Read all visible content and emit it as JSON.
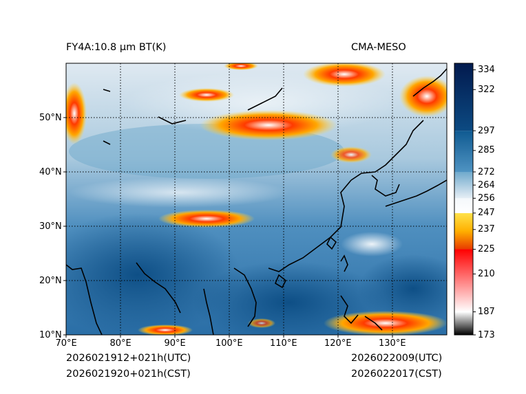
{
  "header": {
    "left_title": "FY4A:10.8 µm BT(K)",
    "right_title": "CMA-MESO"
  },
  "footer": {
    "init_utc": "2026021912+021h(UTC)",
    "init_cst": "2026021920+021h(CST)",
    "valid_utc": "2026022009(UTC)",
    "valid_cst": "2026022017(CST)"
  },
  "map": {
    "lon_range": [
      70,
      140
    ],
    "lat_range": [
      10,
      60
    ],
    "lon_ticks": [
      {
        "value": 70,
        "label": "70°E"
      },
      {
        "value": 80,
        "label": "80°E"
      },
      {
        "value": 90,
        "label": "90°E"
      },
      {
        "value": 100,
        "label": "100°E"
      },
      {
        "value": 110,
        "label": "110°E"
      },
      {
        "value": 120,
        "label": "120°E"
      },
      {
        "value": 130,
        "label": "130°E"
      }
    ],
    "lat_ticks": [
      {
        "value": 10,
        "label": "10°N"
      },
      {
        "value": 20,
        "label": "20°N"
      },
      {
        "value": 30,
        "label": "30°N"
      },
      {
        "value": 40,
        "label": "40°N"
      },
      {
        "value": 50,
        "label": "50°N"
      }
    ],
    "gridline_style": "dotted"
  },
  "colorbar": {
    "unit": "K",
    "range": [
      173,
      338
    ],
    "ticks": [
      {
        "value": 173,
        "label": "173"
      },
      {
        "value": 187,
        "label": "187"
      },
      {
        "value": 210,
        "label": "210"
      },
      {
        "value": 225,
        "label": "225"
      },
      {
        "value": 237,
        "label": "237"
      },
      {
        "value": 247,
        "label": "247"
      },
      {
        "value": 256,
        "label": "256"
      },
      {
        "value": 264,
        "label": "264"
      },
      {
        "value": 272,
        "label": "272"
      },
      {
        "value": 285,
        "label": "285"
      },
      {
        "value": 297,
        "label": "297"
      },
      {
        "value": 322,
        "label": "322"
      },
      {
        "value": 334,
        "label": "334"
      }
    ],
    "segments": [
      {
        "from": 173,
        "to": 187,
        "colors": [
          "#000000",
          "#ffffff"
        ]
      },
      {
        "from": 187,
        "to": 225,
        "colors": [
          "#ffffff",
          "#ff0000"
        ]
      },
      {
        "from": 225,
        "to": 247,
        "colors": [
          "#e83b00",
          "#ffb000",
          "#ffe24a"
        ]
      },
      {
        "from": 247,
        "to": 256,
        "colors": [
          "#ffffff",
          "#f4f8fb"
        ]
      },
      {
        "from": 256,
        "to": 272,
        "colors": [
          "#e6eef5",
          "#6fa9cc"
        ]
      },
      {
        "from": 272,
        "to": 297,
        "colors": [
          "#4f93c2",
          "#0f5a91"
        ]
      },
      {
        "from": 297,
        "to": 338,
        "colors": [
          "#0c4a82",
          "#021a4e"
        ]
      }
    ]
  }
}
